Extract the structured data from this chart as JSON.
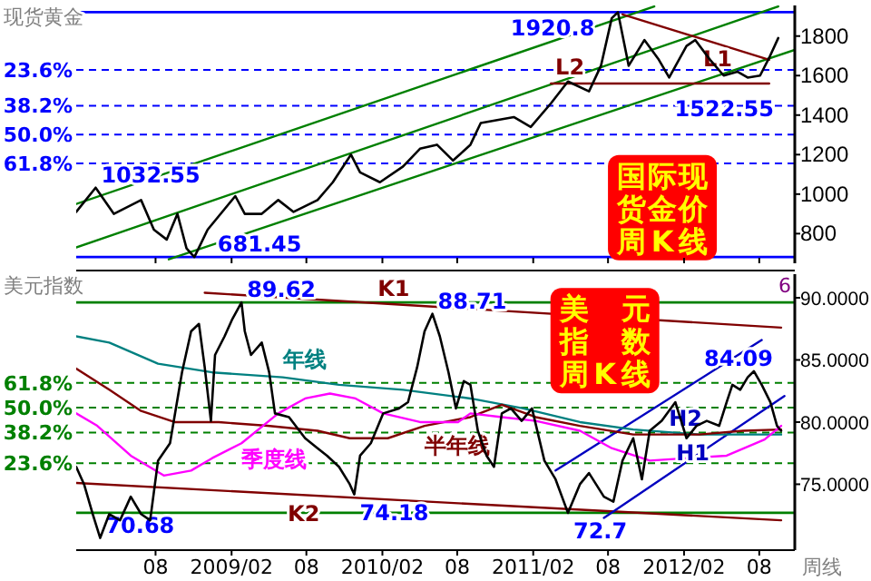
{
  "chart_data": [
    {
      "type": "line",
      "title": "现货黄金",
      "xlim": [
        "2008-01-22",
        "2012-10-26"
      ],
      "ylim": [
        650,
        1955
      ],
      "yticks": [
        800,
        1000,
        1200,
        1400,
        1600,
        1800
      ],
      "tick_labels": "y",
      "y2lim": [
        102.54,
        -2.76
      ],
      "y2ticks": [
        {
          "value": 23.6,
          "label": "23.6%"
        },
        {
          "value": 38.2,
          "label": "38.2%"
        },
        {
          "value": 50,
          "label": "50.0%"
        },
        {
          "value": 61.8,
          "label": "61.8%"
        }
      ],
      "xticks": [
        {
          "value": "2008-08-01",
          "label": null
        },
        {
          "value": "2009-02-01",
          "label": null
        },
        {
          "value": "2009-08-01",
          "label": null
        },
        {
          "value": "2010-02-01",
          "label": null
        },
        {
          "value": "2010-08-01",
          "label": null
        },
        {
          "value": "2011-02-01",
          "label": null
        },
        {
          "value": "2011-08-01",
          "label": null
        },
        {
          "value": "2012-02-01",
          "label": null
        },
        {
          "value": "2012-08-01",
          "label": null
        }
      ],
      "series": [
        {
          "color": "#008000",
          "x": [
            "2008-01-22",
            "2011-11-21"
          ],
          "values": [
            950,
            1950
          ]
        },
        {
          "color": "#008000",
          "x": [
            "2008-01-22",
            "2012-09-16"
          ],
          "values": [
            730,
            1950
          ]
        },
        {
          "color": "#008000",
          "x": [
            "2008-09-02",
            "2012-10-26"
          ],
          "values": [
            670,
            1730
          ]
        },
        {
          "name": "L1",
          "color": "#800000",
          "x": [
            "2011-09-05",
            "2012-08-25"
          ],
          "values": [
            1910,
            1680
          ]
        },
        {
          "name": "L2",
          "color": "#800000",
          "x": [
            "2011-03-16",
            "2012-08-25"
          ],
          "values": [
            1560,
            1560
          ]
        },
        {
          "color": "#000000",
          "x": [
            "2008-01-22",
            "2008-03-09",
            "2008-04-22",
            "2008-06-27",
            "2008-07-28",
            "2008-08-28",
            "2008-09-23",
            "2008-10-15",
            "2008-11-03",
            "2008-12-05",
            "2009-02-10",
            "2009-03-05",
            "2009-04-15",
            "2009-05-25",
            "2009-07-01",
            "2009-08-28",
            "2009-10-04",
            "2009-11-17",
            "2009-12-09",
            "2010-01-26",
            "2010-03-23",
            "2010-05-03",
            "2010-06-13",
            "2010-07-22",
            "2010-09-02",
            "2010-09-27",
            "2010-12-16",
            "2011-01-26",
            "2011-03-16",
            "2011-04-26",
            "2011-06-16",
            "2011-07-15",
            "2011-08-10",
            "2011-08-25",
            "2011-09-20",
            "2011-10-28",
            "2011-12-02",
            "2011-12-27",
            "2012-02-07",
            "2012-02-28",
            "2012-04-04",
            "2012-05-07",
            "2012-06-09",
            "2012-07-04",
            "2012-08-03",
            "2012-08-25",
            "2012-09-16"
          ],
          "values": [
            910,
            1032.55,
            900,
            970,
            820,
            770,
            900,
            725,
            681.45,
            820,
            990,
            900,
            900,
            970,
            910,
            970,
            1060,
            1200,
            1110,
            1060,
            1140,
            1230,
            1250,
            1170,
            1250,
            1360,
            1390,
            1340,
            1460,
            1570,
            1520,
            1650,
            1890,
            1920.8,
            1650,
            1780,
            1680,
            1590,
            1750,
            1780,
            1680,
            1600,
            1620,
            1590,
            1600,
            1690,
            1790
          ]
        }
      ],
      "ref_lines": [
        {
          "axis": "y",
          "value": 1920.8,
          "color": "#0000ff",
          "line_style": "solid"
        },
        {
          "axis": "y2",
          "value": 23.6,
          "color": "#0000ff",
          "line_style": "dashed"
        },
        {
          "axis": "y2",
          "value": 38.2,
          "color": "#0000ff",
          "line_style": "dashed"
        },
        {
          "axis": "y2",
          "value": 50,
          "color": "#0000ff",
          "line_style": "dashed"
        },
        {
          "axis": "y2",
          "value": 61.8,
          "color": "#0000ff",
          "line_style": "dashed"
        },
        {
          "axis": "y",
          "value": 681.45,
          "color": "#0000ff",
          "line_style": "solid"
        }
      ],
      "annotations": [
        {
          "text": "1920.8",
          "x": "2010-11-25",
          "y": 1920.8
        },
        {
          "text": "681.45",
          "x": "2008-12-16",
          "y": 681.45
        },
        {
          "text": "1032.55",
          "x": "2008-03-09",
          "y": 1032.55
        },
        {
          "text": "1522.55",
          "x": "2011-12-27",
          "y": 1522.55
        },
        "国际现货金价周K线"
      ]
    },
    {
      "type": "line",
      "title": "美元指数",
      "xlabel": "周线",
      "xlim": [
        "2008-01-22",
        "2012-10-26"
      ],
      "ylim": [
        69.7,
        91.9
      ],
      "yticks": [
        {
          "value": 75,
          "label": "75.0000"
        },
        {
          "value": 80,
          "label": "80.0000"
        },
        {
          "value": 85,
          "label": "85.0000"
        },
        {
          "value": 90,
          "label": "90.0000"
        }
      ],
      "y2lim": [
        -17.73,
        113.48
      ],
      "y2ticks": [
        {
          "value": 23.6,
          "label": "23.6%"
        },
        {
          "value": 38.2,
          "label": "38.2%"
        },
        {
          "value": 50,
          "label": "50.0%"
        },
        {
          "value": 61.8,
          "label": "61.8%"
        }
      ],
      "xticks": [
        {
          "value": "2008-08-01",
          "label": "08"
        },
        {
          "value": "2009-02-01",
          "label": "2009/02"
        },
        {
          "value": "2009-08-01",
          "label": "08"
        },
        {
          "value": "2010-02-01",
          "label": "2010/02"
        },
        {
          "value": "2010-08-01",
          "label": "08"
        },
        {
          "value": "2011-02-01",
          "label": "2011/02"
        },
        {
          "value": "2011-08-01",
          "label": "08"
        },
        {
          "value": "2012-02-01",
          "label": "2012/02"
        },
        {
          "value": "2012-08-01",
          "label": "08"
        }
      ],
      "series": [
        {
          "name": "K1",
          "color": "#800000",
          "x": [
            "2008-11-28",
            "2012-09-23"
          ],
          "values": [
            90.4,
            87.6
          ]
        },
        {
          "name": "K2",
          "color": "#800000",
          "x": [
            "2008-01-22",
            "2012-09-23"
          ],
          "values": [
            75.1,
            72.1
          ]
        },
        {
          "name": "H1",
          "color": "#0000c0",
          "x": [
            "2011-07-22",
            "2012-10-01"
          ],
          "values": [
            72.3,
            82.1
          ]
        },
        {
          "name": "H2",
          "color": "#0000c0",
          "x": [
            "2011-03-27",
            "2012-08-07"
          ],
          "values": [
            76.1,
            86.6
          ]
        },
        {
          "name": "年线",
          "color": "#008080",
          "x": [
            "2008-01-22",
            "2008-04-11",
            "2008-08-07",
            "2008-12-16",
            "2009-06-05",
            "2009-10-19",
            "2010-03-23",
            "2010-09-02",
            "2011-01-08",
            "2011-05-25",
            "2011-10-01",
            "2012-03-09",
            "2012-09-23"
          ],
          "values": [
            86.9,
            86.4,
            84.7,
            84.0,
            83.6,
            83.0,
            82.6,
            81.9,
            81.1,
            80.0,
            79.4,
            79.0,
            79.0
          ]
        },
        {
          "name": "半年线",
          "color": "#800000",
          "x": [
            "2008-01-22",
            "2008-04-11",
            "2008-06-27",
            "2008-09-16",
            "2009-01-01",
            "2009-04-29",
            "2009-08-28",
            "2009-11-14",
            "2010-02-14",
            "2010-05-14",
            "2010-09-02",
            "2010-11-17",
            "2011-02-07",
            "2011-05-25",
            "2011-10-01",
            "2012-03-09",
            "2012-06-23",
            "2012-09-23"
          ],
          "values": [
            84.3,
            82.6,
            80.9,
            80.0,
            80.0,
            79.7,
            79.3,
            78.7,
            78.7,
            79.7,
            80.4,
            81.4,
            80.4,
            79.7,
            79.0,
            79.0,
            79.3,
            79.4
          ]
        },
        {
          "name": "季度线",
          "color": "#ff00ff",
          "x": [
            "2008-01-22",
            "2008-03-13",
            "2008-06-02",
            "2008-08-21",
            "2008-10-26",
            "2008-12-16",
            "2009-02-25",
            "2009-05-25",
            "2009-07-29",
            "2009-09-27",
            "2009-11-28",
            "2010-02-03",
            "2010-05-03",
            "2010-08-03",
            "2010-09-02",
            "2010-11-17",
            "2011-02-07",
            "2011-05-25",
            "2011-08-10",
            "2011-11-10",
            "2012-02-10",
            "2012-05-14",
            "2012-08-14",
            "2012-09-23"
          ],
          "values": [
            80.7,
            79.7,
            77.3,
            75.7,
            76.1,
            77.1,
            78.3,
            80.7,
            81.9,
            82.3,
            81.9,
            80.7,
            80.0,
            80.0,
            80.7,
            80.4,
            80.1,
            79.3,
            77.9,
            76.9,
            77.1,
            77.3,
            78.6,
            79.7
          ]
        },
        {
          "color": "#000000",
          "x": [
            "2008-01-22",
            "2008-02-10",
            "2008-03-02",
            "2008-03-20",
            "2008-04-11",
            "2008-05-07",
            "2008-06-02",
            "2008-06-27",
            "2008-07-19",
            "2008-08-07",
            "2008-09-05",
            "2008-10-04",
            "2008-10-26",
            "2008-11-14",
            "2008-11-28",
            "2008-12-13",
            "2008-12-23",
            "2009-01-15",
            "2009-02-03",
            "2009-02-25",
            "2009-03-05",
            "2009-03-20",
            "2009-04-15",
            "2009-05-03",
            "2009-05-17",
            "2009-06-20",
            "2009-07-29",
            "2009-08-28",
            "2009-09-20",
            "2009-10-19",
            "2009-11-14",
            "2009-11-25",
            "2009-12-09",
            "2010-01-04",
            "2010-02-03",
            "2010-03-13",
            "2010-04-04",
            "2010-04-26",
            "2010-05-14",
            "2010-06-02",
            "2010-06-20",
            "2010-07-11",
            "2010-07-29",
            "2010-08-17",
            "2010-09-02",
            "2010-09-20",
            "2010-10-11",
            "2010-10-29",
            "2010-11-17",
            "2010-12-09",
            "2011-01-04",
            "2011-01-29",
            "2011-02-28",
            "2011-03-27",
            "2011-04-26",
            "2011-05-25",
            "2011-06-16",
            "2011-07-22",
            "2011-08-14",
            "2011-09-05",
            "2011-10-01",
            "2011-10-22",
            "2011-11-10",
            "2011-12-09",
            "2012-01-11",
            "2012-02-07",
            "2012-03-02",
            "2012-03-27",
            "2012-04-26",
            "2012-05-14",
            "2012-05-28",
            "2012-06-16",
            "2012-07-04",
            "2012-07-19",
            "2012-08-07",
            "2012-08-28",
            "2012-09-13",
            "2012-09-23"
          ],
          "values": [
            76.4,
            75.0,
            72.6,
            70.68,
            72.6,
            72.1,
            74.0,
            72.6,
            72.1,
            76.9,
            78.3,
            84.0,
            87.3,
            87.9,
            84.4,
            80.1,
            85.4,
            86.9,
            88.3,
            89.62,
            87.3,
            85.4,
            86.4,
            84.0,
            80.7,
            80.4,
            78.7,
            77.9,
            77.3,
            76.4,
            75.0,
            74.18,
            77.3,
            78.3,
            80.7,
            81.1,
            81.6,
            84.4,
            87.3,
            88.71,
            86.9,
            84.0,
            81.1,
            83.3,
            83.0,
            79.3,
            77.3,
            76.4,
            80.7,
            81.1,
            80.1,
            81.1,
            76.9,
            75.4,
            72.7,
            75.0,
            75.9,
            74.0,
            73.6,
            76.9,
            78.7,
            75.4,
            79.3,
            80.1,
            81.6,
            78.7,
            79.7,
            80.1,
            79.7,
            81.6,
            83.0,
            82.6,
            83.6,
            84.09,
            83.0,
            81.6,
            79.7,
            79.3
          ]
        }
      ],
      "ref_lines": [
        {
          "axis": "y",
          "value": 89.62,
          "color": "#008000",
          "line_style": "solid"
        },
        {
          "axis": "y2",
          "value": 61.8,
          "color": "#008000",
          "line_style": "dashed"
        },
        {
          "axis": "y2",
          "value": 50,
          "color": "#008000",
          "line_style": "dashed"
        },
        {
          "axis": "y2",
          "value": 38.2,
          "color": "#008000",
          "line_style": "dashed"
        },
        {
          "axis": "y2",
          "value": 23.6,
          "color": "#008000",
          "line_style": "dashed"
        },
        {
          "axis": "y",
          "value": 72.7,
          "color": "#008000",
          "line_style": "solid"
        }
      ],
      "annotations": [
        {
          "text": "70.68",
          "x": "2008-03-20",
          "y": 70.68
        },
        {
          "text": "89.62",
          "x": "2009-02-25",
          "y": 89.62
        },
        {
          "text": "74.18",
          "x": "2009-11-25",
          "y": 74.18
        },
        {
          "text": "88.71",
          "x": "2010-06-02",
          "y": 88.71
        },
        {
          "text": "72.7",
          "x": "2011-04-26",
          "y": 72.7
        },
        {
          "text": "84.09",
          "x": "2012-07-19",
          "y": 84.09
        },
        "美元指数周K线",
        "6"
      ]
    }
  ]
}
